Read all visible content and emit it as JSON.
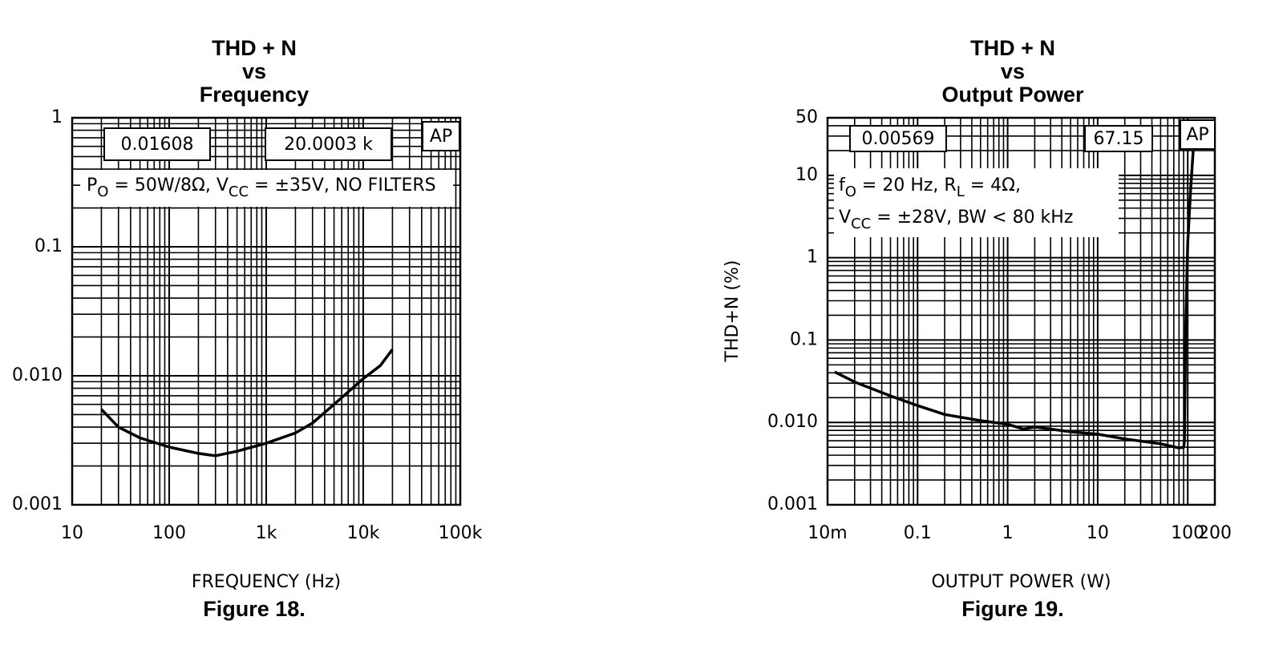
{
  "chart_data": [
    {
      "type": "line",
      "title": [
        "THD + N",
        "vs",
        "Frequency"
      ],
      "x_label": "FREQUENCY (Hz)",
      "caption": "Figure 18.",
      "x_scale": "log",
      "y_scale": "log",
      "grid": true,
      "color": "#000000",
      "xlim": [
        10,
        100000
      ],
      "ylim": [
        0.001,
        1
      ],
      "xticks": [
        10,
        100,
        {
          "value": 1000,
          "label": "1k"
        },
        {
          "value": 10000,
          "label": "10k"
        },
        {
          "value": 100000,
          "label": "100k"
        }
      ],
      "yticks": [
        0.001,
        {
          "value": 0.01,
          "label": "0.010"
        },
        0.1,
        1
      ],
      "readouts": [
        "0.01608",
        "20.0003 k",
        "AP"
      ],
      "conditions": [
        [
          "P",
          "O",
          " = 50W/8Ω, V",
          "CC",
          " = ±35V, NO FILTERS"
        ]
      ],
      "x": [
        20,
        30,
        50,
        100,
        200,
        300,
        500,
        1000,
        2000,
        3000,
        5000,
        10000,
        15000,
        20000
      ],
      "values": [
        0.0055,
        0.004,
        0.0033,
        0.0028,
        0.0025,
        0.0024,
        0.0026,
        0.003,
        0.0036,
        0.0043,
        0.006,
        0.0095,
        0.012,
        0.016
      ]
    },
    {
      "type": "line",
      "title": [
        "THD + N",
        "vs",
        "Output Power"
      ],
      "x_label": "OUTPUT POWER (W)",
      "y_label": "THD+N (%)",
      "caption": "Figure 19.",
      "x_scale": "log",
      "y_scale": "log",
      "grid": true,
      "color": "#000000",
      "xlim": [
        0.01,
        200
      ],
      "ylim": [
        0.001,
        50
      ],
      "xticks": [
        {
          "value": 0.01,
          "label": "10m"
        },
        0.1,
        1,
        10,
        100,
        200
      ],
      "yticks": [
        0.001,
        {
          "value": 0.01,
          "label": "0.010"
        },
        0.1,
        1,
        10,
        50
      ],
      "readouts": [
        "0.00569",
        "67.15",
        "AP"
      ],
      "conditions": [
        [
          "f",
          "O",
          " = 20 Hz, R",
          "L",
          " = 4Ω,"
        ],
        [
          "V",
          "CC",
          " = ±28V, BW < 80 kHz"
        ]
      ],
      "x": [
        0.012,
        0.02,
        0.05,
        0.1,
        0.2,
        0.5,
        1,
        1.5,
        2,
        5,
        10,
        20,
        50,
        80,
        90,
        92,
        95,
        100,
        108,
        115
      ],
      "values": [
        0.041,
        0.031,
        0.021,
        0.016,
        0.0125,
        0.0105,
        0.0095,
        0.0083,
        0.0088,
        0.0077,
        0.0072,
        0.0063,
        0.0055,
        0.0049,
        0.005,
        0.006,
        0.15,
        1.5,
        7,
        20
      ]
    }
  ]
}
